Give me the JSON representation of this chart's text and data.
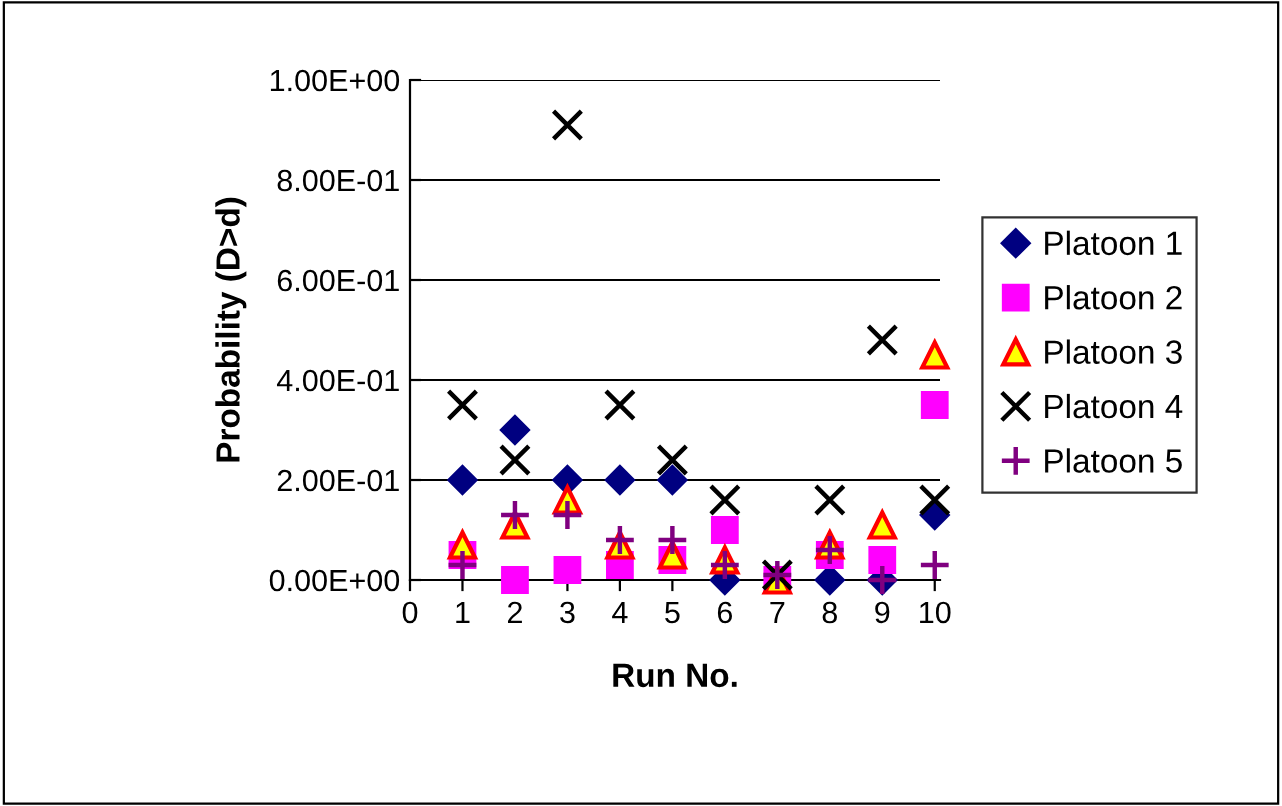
{
  "chart_data": {
    "type": "scatter",
    "xlabel": "Run No.",
    "ylabel": "Probability (D>d)",
    "x": [
      1,
      2,
      3,
      4,
      5,
      6,
      7,
      8,
      9,
      10
    ],
    "series": [
      {
        "name": "Platoon 1",
        "color": "#000080",
        "marker": "diamond",
        "values": [
          0.2,
          0.3,
          0.2,
          0.2,
          0.2,
          0.0,
          null,
          0.0,
          0.0,
          0.13
        ]
      },
      {
        "name": "Platoon 2",
        "color": "#ff00ff",
        "marker": "square",
        "values": [
          0.05,
          0.0,
          0.02,
          0.03,
          0.04,
          0.1,
          0.0,
          0.05,
          0.04,
          0.35
        ]
      },
      {
        "name": "Platoon 3",
        "color": "#ffff00",
        "marker": "triangle",
        "values": [
          0.07,
          0.11,
          0.16,
          0.07,
          0.05,
          0.04,
          0.0,
          0.07,
          0.11,
          0.45
        ]
      },
      {
        "name": "Platoon 4",
        "color": "#000000",
        "marker": "cross",
        "values": [
          0.35,
          0.24,
          0.91,
          0.35,
          0.24,
          0.16,
          0.01,
          0.16,
          0.48,
          0.16
        ]
      },
      {
        "name": "Platoon 5",
        "color": "#800080",
        "marker": "plus",
        "values": [
          0.03,
          0.13,
          0.13,
          0.08,
          0.08,
          0.03,
          0.01,
          0.06,
          0.0,
          0.03
        ]
      }
    ],
    "xlim": [
      0,
      10.1
    ],
    "xticks": [
      0,
      1,
      2,
      3,
      4,
      5,
      6,
      7,
      8,
      9,
      10
    ],
    "ylim": [
      0,
      1
    ],
    "yticks": [
      {
        "value": 0,
        "label": "0.00E+00"
      },
      {
        "value": 0.2,
        "label": "2.00E-01"
      },
      {
        "value": 0.4,
        "label": "4.00E-01"
      },
      {
        "value": 0.6,
        "label": "6.00E-01"
      },
      {
        "value": 0.8,
        "label": "8.00E-01"
      },
      {
        "value": 1.0,
        "label": "1.00E+00"
      }
    ],
    "grid": "y",
    "legend": "right"
  }
}
